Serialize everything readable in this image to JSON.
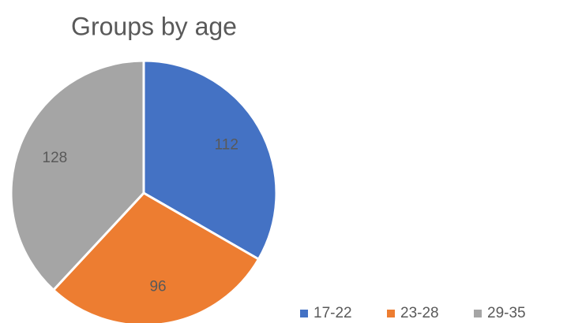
{
  "chart_data": {
    "type": "pie",
    "title": "Groups by age",
    "categories": [
      "17-22",
      "23-28",
      "29-35"
    ],
    "values": [
      112,
      96,
      128
    ],
    "colors": [
      "#4472c4",
      "#ed7d31",
      "#a5a5a5"
    ],
    "legend": "bottom-right"
  }
}
